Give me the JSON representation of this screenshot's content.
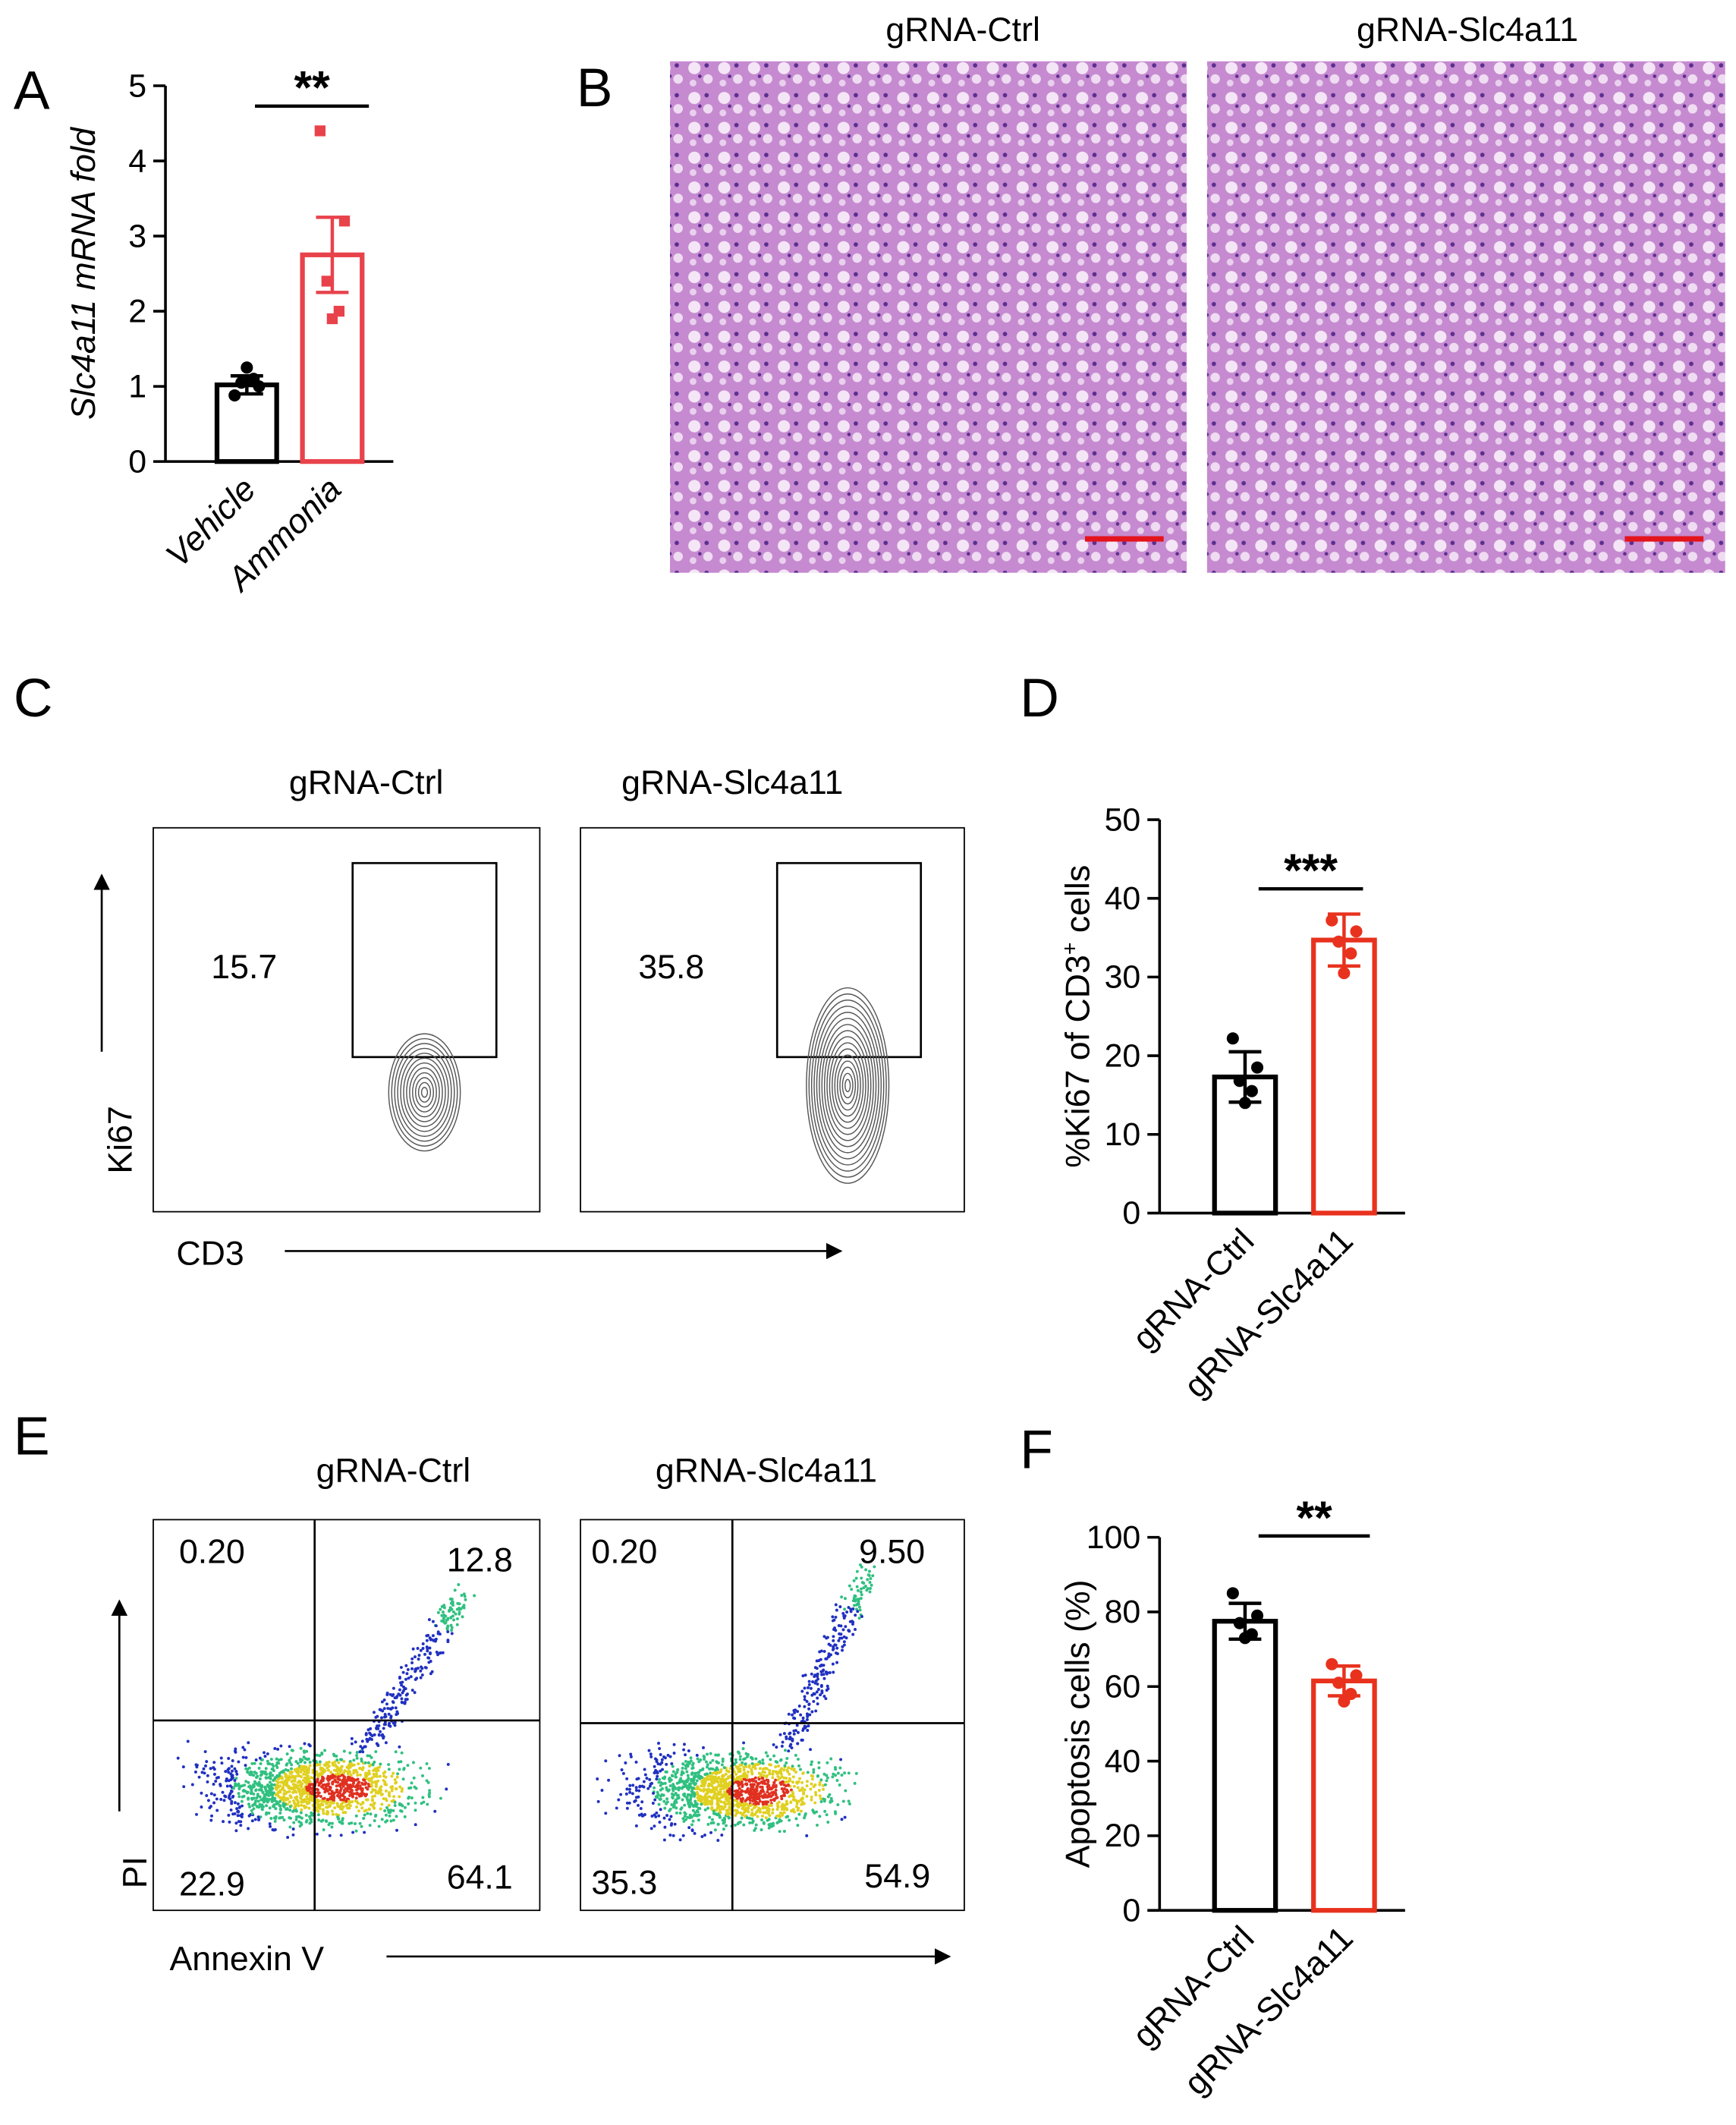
{
  "panel_letters": [
    "A",
    "B",
    "C",
    "D",
    "E",
    "F"
  ],
  "chart_data": [
    {
      "type": "bar",
      "y_label": [
        "Slc4a11 mRNA fold"
      ],
      "categories": [
        "Vehicle",
        "Ammonia"
      ],
      "values": [
        1.02,
        2.75
      ],
      "errors": [
        0.12,
        0.5
      ],
      "points": [
        [
          0.88,
          1.0,
          1.05,
          1.1,
          1.25
        ],
        [
          4.4,
          3.2,
          2.4,
          2.0,
          1.9
        ]
      ],
      "colors": [
        "#000000",
        "#e8424b"
      ],
      "ylim": [
        0,
        5
      ],
      "yticks": [
        0,
        1,
        2,
        3,
        4,
        5
      ],
      "significance": "**"
    },
    {
      "type": "bar",
      "y_label": [
        "%Ki67 of CD3",
        "+",
        " cells"
      ],
      "categories": [
        "gRNA-Ctrl",
        "gRNA-Slc4a11"
      ],
      "values": [
        17.3,
        34.7
      ],
      "errors": [
        3.2,
        3.3
      ],
      "points": [
        [
          22.2,
          18.5,
          16.8,
          15.5,
          14.0
        ],
        [
          37.2,
          35.8,
          34.5,
          33.0,
          30.5
        ]
      ],
      "colors": [
        "#000000",
        "#e8321e"
      ],
      "ylim": [
        0,
        50
      ],
      "yticks": [
        0,
        10,
        20,
        30,
        40,
        50
      ],
      "significance": "***"
    },
    {
      "type": "bar",
      "y_label": [
        "Apoptosis cells (%)"
      ],
      "categories": [
        "gRNA-Ctrl",
        "gRNA-Slc4a11"
      ],
      "values": [
        77.5,
        61.5
      ],
      "errors": [
        4.8,
        4.0
      ],
      "points": [
        [
          85,
          79,
          77,
          74,
          73
        ],
        [
          66,
          63,
          61,
          58,
          56
        ]
      ],
      "colors": [
        "#000000",
        "#e8321e"
      ],
      "ylim": [
        0,
        100
      ],
      "yticks": [
        0,
        20,
        40,
        60,
        80,
        100
      ],
      "significance": "**"
    }
  ],
  "histology": {
    "titles": [
      "gRNA-Ctrl",
      "gRNA-Slc4a11"
    ]
  },
  "ki67_flow": {
    "titles": [
      "gRNA-Ctrl",
      "gRNA-Slc4a11"
    ],
    "gate_values": [
      "15.7",
      "35.8"
    ],
    "y_label": "Ki67",
    "x_label": "CD3"
  },
  "apoptosis_flow": {
    "titles": [
      "gRNA-Ctrl",
      "gRNA-Slc4a11"
    ],
    "quadrants": [
      [
        "0.20",
        "12.8",
        "22.9",
        "64.1"
      ],
      [
        "0.20",
        "9.50",
        "35.3",
        "54.9"
      ]
    ],
    "y_label": "PI",
    "x_label": "Annexin V"
  }
}
